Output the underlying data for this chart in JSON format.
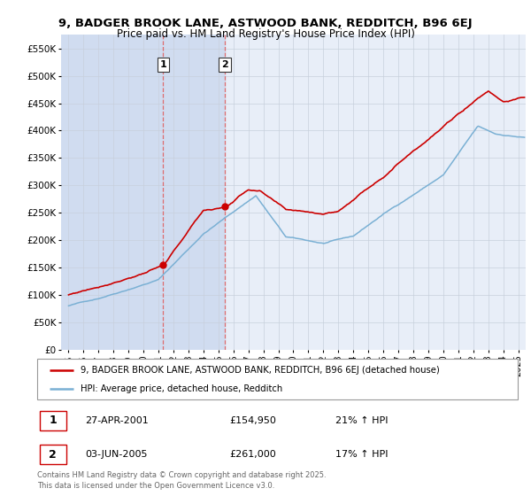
{
  "title": "9, BADGER BROOK LANE, ASTWOOD BANK, REDDITCH, B96 6EJ",
  "subtitle": "Price paid vs. HM Land Registry's House Price Index (HPI)",
  "legend_line1": "9, BADGER BROOK LANE, ASTWOOD BANK, REDDITCH, B96 6EJ (detached house)",
  "legend_line2": "HPI: Average price, detached house, Redditch",
  "annotation1_date": "27-APR-2001",
  "annotation1_price": "£154,950",
  "annotation1_hpi": "21% ↑ HPI",
  "annotation2_date": "03-JUN-2005",
  "annotation2_price": "£261,000",
  "annotation2_hpi": "17% ↑ HPI",
  "footer": "Contains HM Land Registry data © Crown copyright and database right 2025.\nThis data is licensed under the Open Government Licence v3.0.",
  "sale1_x": 2001.32,
  "sale1_y": 154950,
  "sale2_x": 2005.42,
  "sale2_y": 261000,
  "ylim": [
    0,
    575000
  ],
  "xlim": [
    1994.5,
    2025.5
  ],
  "red_color": "#cc0000",
  "blue_color": "#7ab0d4",
  "plot_bg": "#e8eef8",
  "grid_color": "#c8d0dc",
  "vline_color": "#e06060",
  "span_color": "#d0dcf0"
}
